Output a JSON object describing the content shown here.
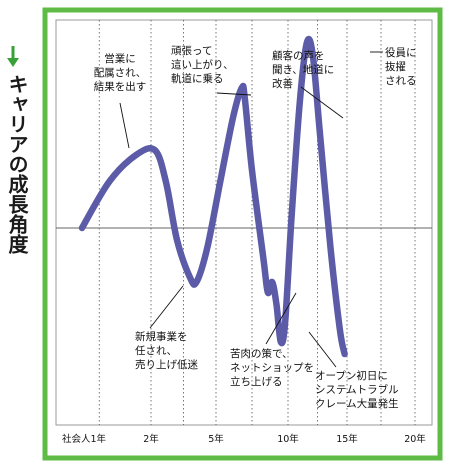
{
  "chart_data": {
    "type": "line",
    "ylabel": "キャリアの成長角度",
    "x_ticks": [
      {
        "x": 0,
        "label": "社会人1年"
      },
      {
        "x": 2,
        "label": "2年"
      },
      {
        "x": 5,
        "label": "5年"
      },
      {
        "x": 10,
        "label": "10年"
      },
      {
        "x": 15,
        "label": "15年"
      },
      {
        "x": 20,
        "label": "20年"
      }
    ],
    "xlim": [
      -0.5,
      20.5
    ],
    "ylim": [
      -10,
      10
    ],
    "grid_x": [
      0.5,
      2,
      3.5,
      5,
      7.5,
      10,
      12.5,
      15,
      17.5,
      20
    ],
    "baseline": 0,
    "series": [
      {
        "color": "#5b5ba8",
        "points": [
          [
            0,
            0
          ],
          [
            0.8,
            2.6
          ],
          [
            1.6,
            4.1
          ],
          [
            2.2,
            4.3
          ],
          [
            2.7,
            2.5
          ],
          [
            3.2,
            -0.8
          ],
          [
            3.8,
            -3.3
          ],
          [
            4.1,
            -3.6
          ],
          [
            4.6,
            -1.3
          ],
          [
            5.3,
            2.6
          ],
          [
            6.2,
            6.2
          ],
          [
            6.8,
            7.8
          ],
          [
            7.0,
            7.2
          ],
          [
            7.5,
            3.2
          ],
          [
            8.3,
            -2.1
          ],
          [
            8.6,
            -4.3
          ],
          [
            8.9,
            -3.6
          ],
          [
            9.2,
            -5.1
          ],
          [
            9.5,
            -7.6
          ],
          [
            9.8,
            -6.3
          ],
          [
            10.3,
            0.6
          ],
          [
            11.0,
            7.0
          ],
          [
            11.6,
            10.3
          ],
          [
            12.1,
            9.6
          ],
          [
            12.7,
            5.3
          ],
          [
            13.6,
            -1.3
          ],
          [
            14.4,
            -6.8
          ],
          [
            14.8,
            -8.4
          ]
        ]
      }
    ],
    "annotations": [
      {
        "id": "a1",
        "lines": [
          "営業に",
          "配属され、",
          "結果を出す"
        ],
        "x": 2.1,
        "y": 4.3
      },
      {
        "id": "a2",
        "lines": [
          "新規事業を",
          "任され、",
          "売り上げ低迷"
        ],
        "x": 4.1,
        "y": -3.6
      },
      {
        "id": "a3",
        "lines": [
          "頑張って",
          "這い上がり、",
          "軌道に乗る"
        ],
        "x": 6.8,
        "y": 7.8
      },
      {
        "id": "a4",
        "lines": [
          "苦肉の策で、",
          "ネットショップを",
          "立ち上げる"
        ],
        "x": 8.9,
        "y": -3.6
      },
      {
        "id": "a5",
        "lines": [
          "顧客の声を",
          "聞き、地道に",
          "改善"
        ],
        "x": 10.3,
        "y": 0.6
      },
      {
        "id": "a6",
        "lines": [
          "オープン初日に",
          "システムトラブル",
          "クレーム大量発生"
        ],
        "x": 9.5,
        "y": -7.6
      },
      {
        "id": "a7",
        "lines": [
          "役員に",
          "抜擢",
          "される"
        ],
        "x": 11.6,
        "y": 10.3
      }
    ],
    "colors": {
      "frame": "#5dbb46",
      "line": "#5b5ba8",
      "arrow": "#3aa038"
    }
  }
}
